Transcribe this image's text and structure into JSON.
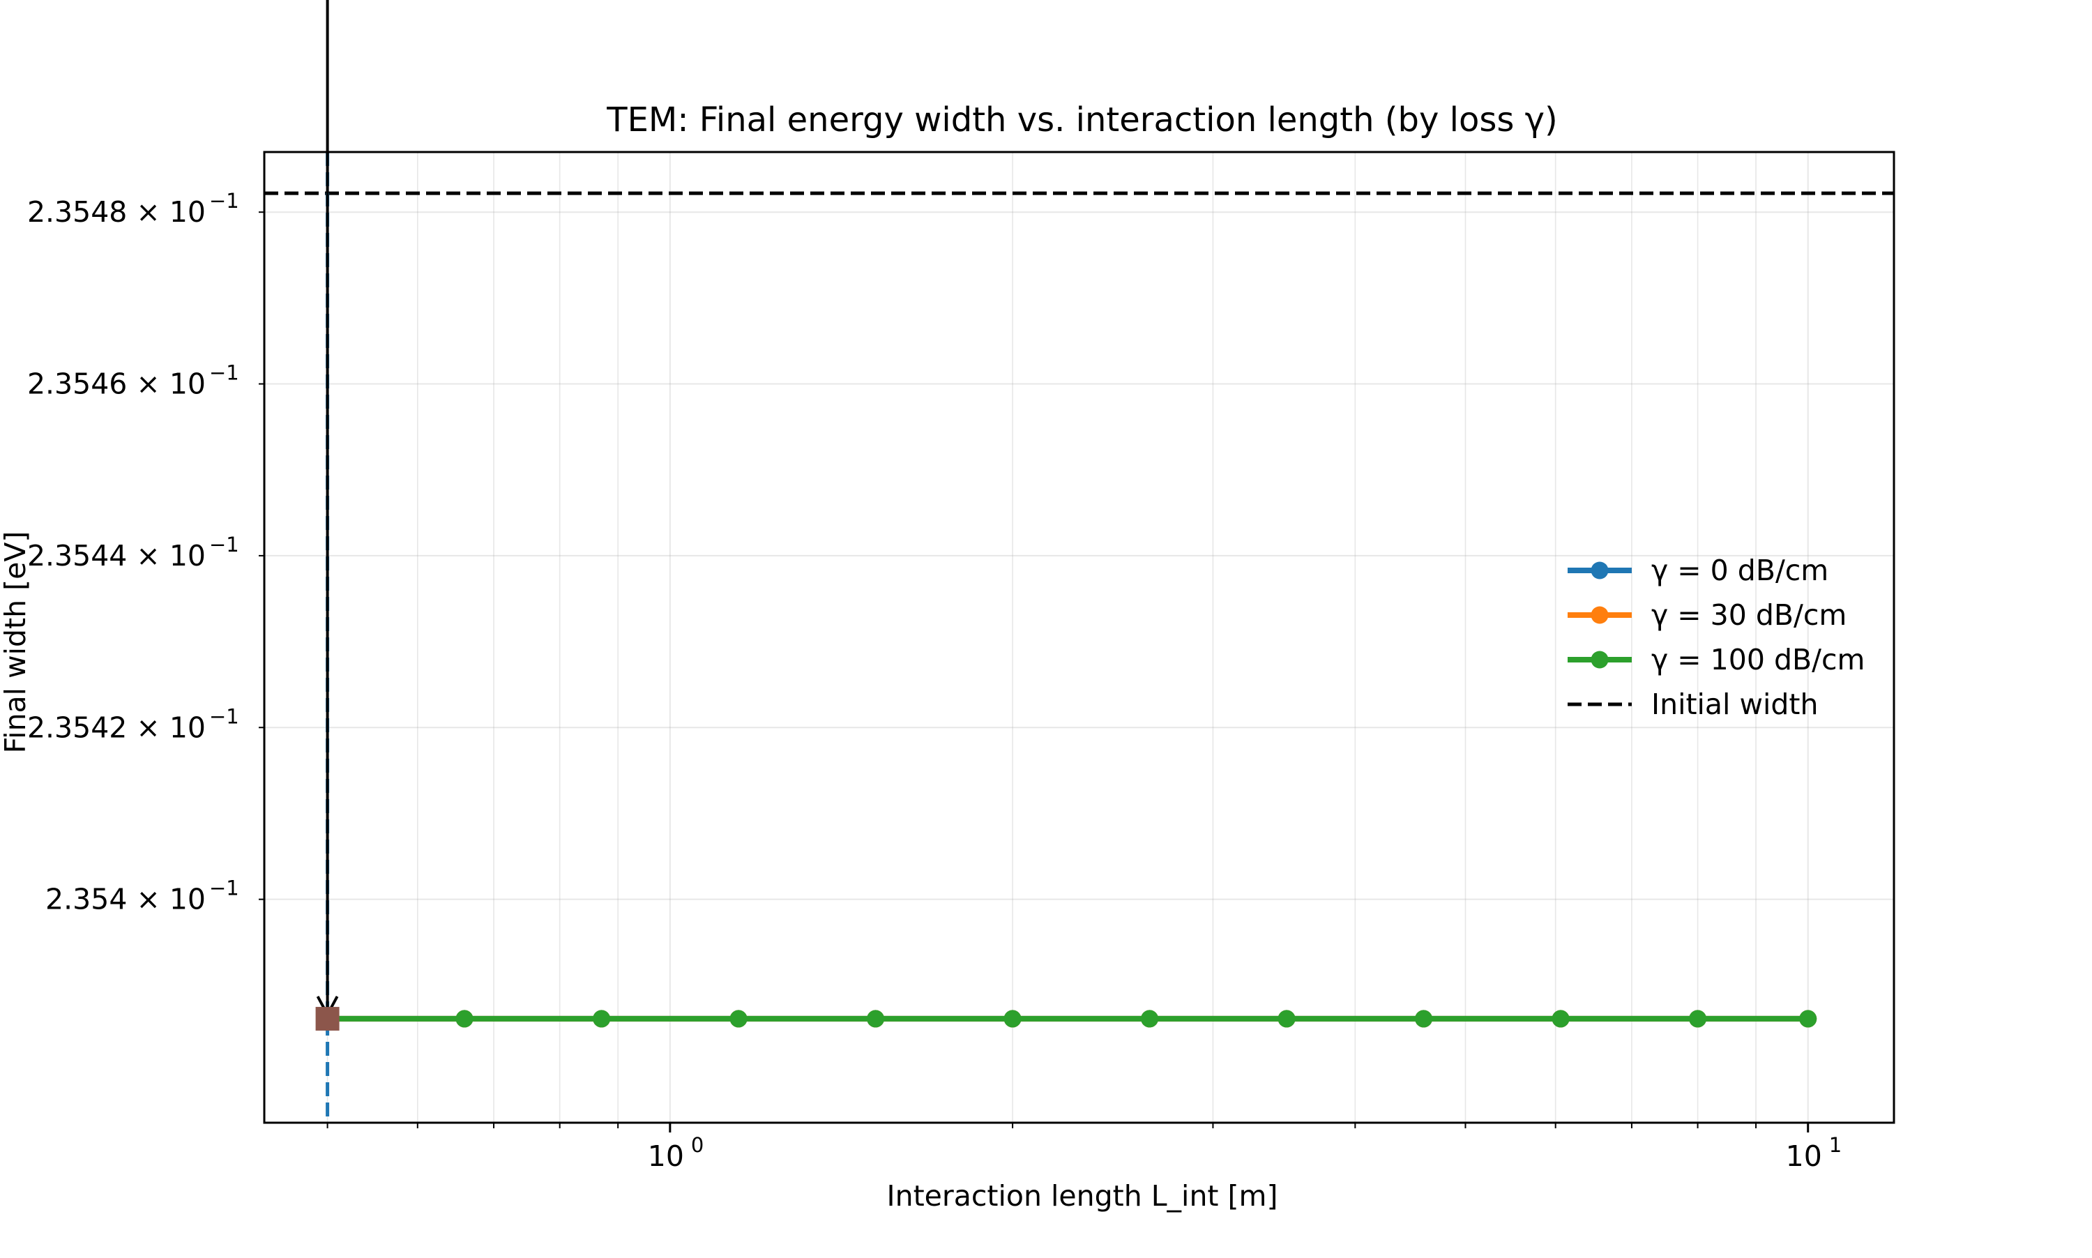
{
  "chart_data": {
    "type": "line",
    "title": "TEM: Final energy width vs. interaction length (by loss γ)",
    "xlabel": "Interaction length L_int [m]",
    "ylabel": "Final width [eV]",
    "xscale": "log",
    "yscale": "log",
    "xlim": [
      0.44,
      11.9
    ],
    "ylim": [
      0.235374,
      0.235487
    ],
    "x": [
      0.5,
      0.6597,
      0.8706,
      1.1487,
      1.5157,
      2.0,
      2.639,
      3.4822,
      4.5948,
      6.0629,
      8.0,
      10.0
    ],
    "series": [
      {
        "name": "γ = 0 dB/cm",
        "color": "#1f77b4",
        "values": [
          0.2353861,
          0.2353861,
          0.2353861,
          0.2353861,
          0.2353861,
          0.2353861,
          0.2353861,
          0.2353861,
          0.2353861,
          0.2353861,
          0.2353861,
          0.2353861
        ]
      },
      {
        "name": "γ = 30 dB/cm",
        "color": "#ff7f0e",
        "values": [
          0.2353861,
          0.2353861,
          0.2353861,
          0.2353861,
          0.2353861,
          0.2353861,
          0.2353861,
          0.2353861,
          0.2353861,
          0.2353861,
          0.2353861,
          0.2353861
        ]
      },
      {
        "name": "γ = 100 dB/cm",
        "color": "#2ca02c",
        "values": [
          0.2353861,
          0.2353861,
          0.2353861,
          0.2353861,
          0.2353861,
          0.2353861,
          0.2353861,
          0.2353861,
          0.2353861,
          0.2353861,
          0.2353861,
          0.2353861
        ]
      }
    ],
    "reference_line": {
      "name": "Initial width",
      "value": 0.2354822,
      "color": "#000000",
      "style": "dashed"
    },
    "marker_point": {
      "x": 0.5,
      "y": 0.2353861,
      "color": "#8c564b",
      "shape": "square"
    },
    "vertical_marker": {
      "x": 0.5,
      "color": "#1f77b4",
      "style": "dashed"
    },
    "arrow_annotation": {
      "x": 0.5,
      "color": "#000000",
      "direction": "down"
    },
    "x_ticks": [
      {
        "value": 1,
        "base": "10",
        "exp": "0"
      },
      {
        "value": 10,
        "base": "10",
        "exp": "1"
      }
    ],
    "y_ticks": [
      {
        "value": 0.2354,
        "mant": "2.354",
        "exp": "−1"
      },
      {
        "value": 0.23542,
        "mant": "2.3542",
        "exp": "−1"
      },
      {
        "value": 0.23544,
        "mant": "2.3544",
        "exp": "−1"
      },
      {
        "value": 0.23546,
        "mant": "2.3546",
        "exp": "−1"
      },
      {
        "value": 0.23548,
        "mant": "2.3548",
        "exp": "−1"
      }
    ],
    "grid": true,
    "legend_position": "center-right"
  }
}
